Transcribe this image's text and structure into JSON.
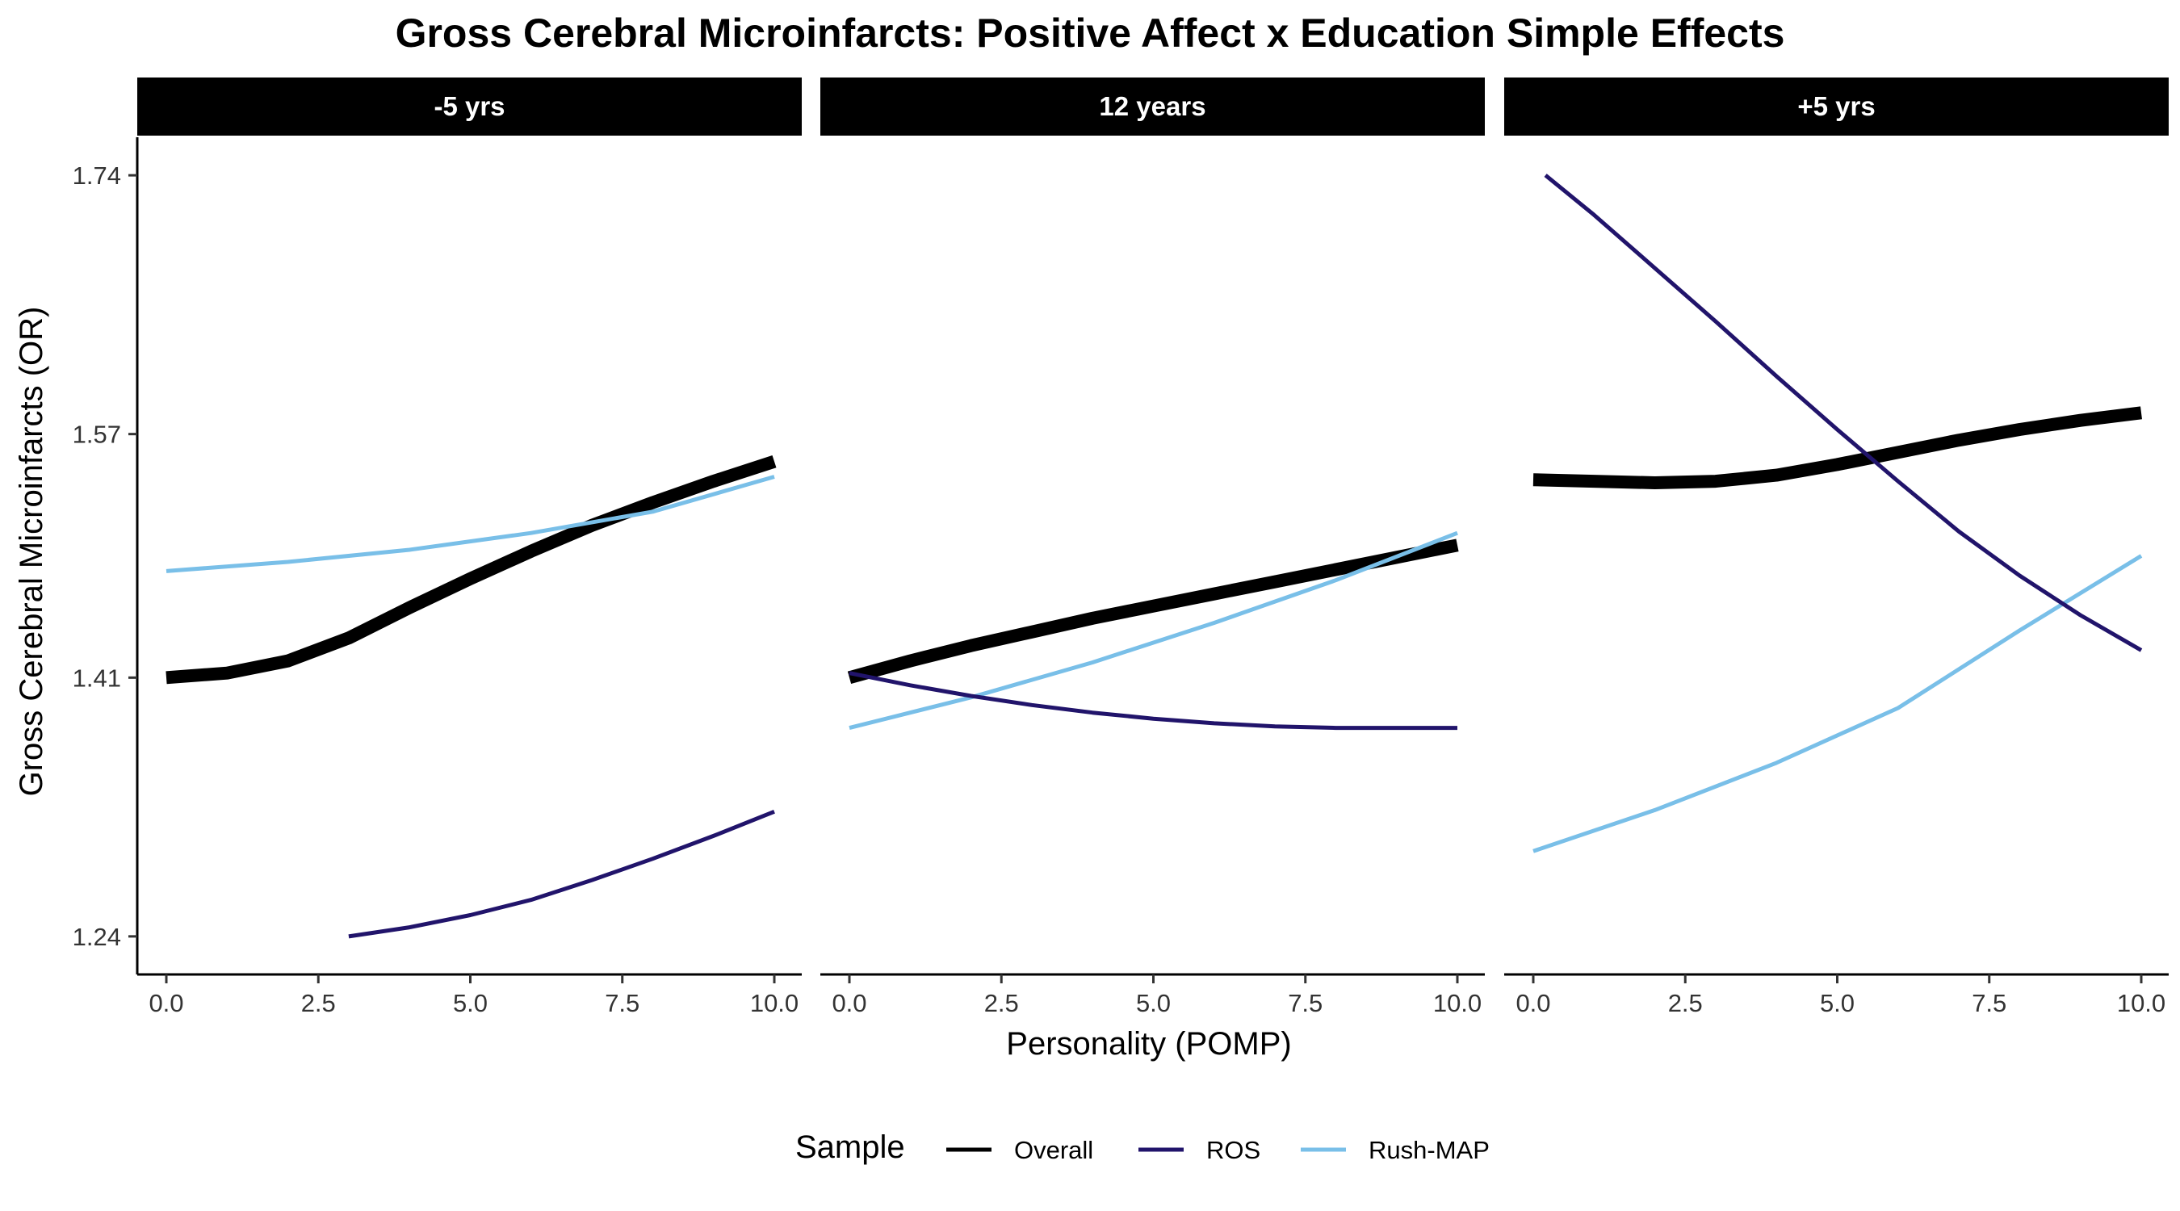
{
  "chart_data": {
    "type": "line",
    "title": "Gross Cerebral Microinfarcts: Positive Affect x Education Simple Effects",
    "xlabel": "Personality (POMP)",
    "ylabel": "Gross Cerebral Microinfarcts (OR)",
    "xlim": [
      0,
      10
    ],
    "ylim": [
      1.215,
      1.765
    ],
    "x_ticks": [
      0,
      2.5,
      5,
      7.5,
      10
    ],
    "x_tick_labels": [
      "0.0",
      "2.5",
      "5.0",
      "7.5",
      "10.0"
    ],
    "y_ticks": [
      1.24,
      1.41,
      1.57,
      1.74
    ],
    "y_tick_labels": [
      "1.24",
      "1.41",
      "1.57",
      "1.74"
    ],
    "grid": false,
    "legend": {
      "title": "Sample",
      "position": "bottom",
      "entries": [
        "Overall",
        "ROS",
        "Rush-MAP"
      ]
    },
    "series_styles": {
      "Overall": {
        "color": "#000000",
        "width": 16
      },
      "ROS": {
        "color": "#21146b",
        "width": 5
      },
      "Rush-MAP": {
        "color": "#79bfe8",
        "width": 5
      }
    },
    "panels": [
      {
        "label": "-5 yrs",
        "series": [
          {
            "name": "Overall",
            "x": [
              0,
              1,
              2,
              3,
              4,
              5,
              6,
              7,
              8,
              9,
              10
            ],
            "y": [
              1.41,
              1.413,
              1.421,
              1.436,
              1.456,
              1.475,
              1.493,
              1.51,
              1.525,
              1.539,
              1.552
            ]
          },
          {
            "name": "ROS",
            "x": [
              3,
              4,
              5,
              6,
              7,
              8,
              9,
              10
            ],
            "y": [
              1.24,
              1.246,
              1.254,
              1.264,
              1.277,
              1.291,
              1.306,
              1.322
            ]
          },
          {
            "name": "Rush-MAP",
            "x": [
              0,
              2,
              4,
              6,
              8,
              10
            ],
            "y": [
              1.48,
              1.486,
              1.494,
              1.505,
              1.519,
              1.542
            ]
          }
        ]
      },
      {
        "label": "12 years",
        "series": [
          {
            "name": "Overall",
            "x": [
              0,
              1,
              2,
              3,
              4,
              5,
              6,
              7,
              8,
              9,
              10
            ],
            "y": [
              1.41,
              1.421,
              1.431,
              1.44,
              1.449,
              1.457,
              1.465,
              1.473,
              1.481,
              1.489,
              1.497
            ]
          },
          {
            "name": "ROS",
            "x": [
              0,
              1,
              2,
              3,
              4,
              5,
              6,
              7,
              8,
              9,
              10
            ],
            "y": [
              1.413,
              1.405,
              1.398,
              1.392,
              1.387,
              1.383,
              1.38,
              1.378,
              1.377,
              1.377,
              1.377
            ]
          },
          {
            "name": "Rush-MAP",
            "x": [
              0,
              2,
              4,
              6,
              8,
              10
            ],
            "y": [
              1.377,
              1.397,
              1.42,
              1.446,
              1.474,
              1.505
            ]
          }
        ]
      },
      {
        "label": "+5 yrs",
        "series": [
          {
            "name": "Overall",
            "x": [
              0,
              1,
              2,
              3,
              4,
              5,
              6,
              7,
              8,
              9,
              10
            ],
            "y": [
              1.54,
              1.539,
              1.538,
              1.539,
              1.543,
              1.55,
              1.558,
              1.566,
              1.573,
              1.579,
              1.584
            ]
          },
          {
            "name": "ROS",
            "x": [
              0.2,
              1,
              2,
              3,
              4,
              5,
              6,
              7,
              8,
              9,
              10
            ],
            "y": [
              1.74,
              1.714,
              1.679,
              1.644,
              1.608,
              1.573,
              1.539,
              1.506,
              1.477,
              1.451,
              1.428
            ]
          },
          {
            "name": "Rush-MAP",
            "x": [
              0,
              2,
              4,
              6,
              8,
              10
            ],
            "y": [
              1.296,
              1.323,
              1.354,
              1.39,
              1.441,
              1.49
            ]
          }
        ]
      }
    ]
  }
}
